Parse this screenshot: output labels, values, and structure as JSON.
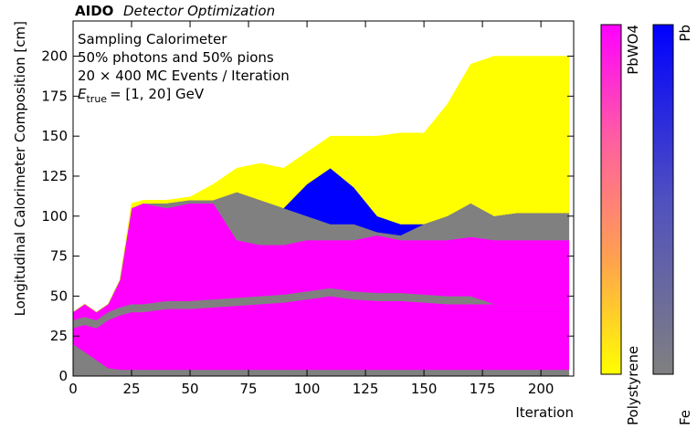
{
  "chart_data": {
    "type": "stacked_area",
    "header": {
      "bold": "AIDO",
      "italic": "Detector Optimization"
    },
    "xlabel": "Iteration",
    "ylabel": "Longitudinal Calorimeter Composition [cm]",
    "annotations": [
      "Sampling Calorimeter",
      "50% photons and 50% pions",
      "20 × 400 MC Events / Iteration"
    ],
    "energy_label": {
      "symbol": "E",
      "subscript": "true",
      "text": "= [1, 20] GeV"
    },
    "x": [
      0,
      5,
      10,
      15,
      20,
      25,
      30,
      40,
      50,
      60,
      70,
      80,
      90,
      100,
      110,
      120,
      130,
      140,
      150,
      160,
      170,
      180,
      190,
      200,
      212
    ],
    "series": [
      {
        "color": "#808080",
        "values": [
          20,
          15,
          10,
          5,
          4,
          4,
          4,
          4,
          4,
          4,
          4,
          4,
          4,
          4,
          4,
          4,
          4,
          4,
          4,
          4,
          4,
          4,
          4,
          4,
          4
        ]
      },
      {
        "color": "#ff00ff",
        "values": [
          10,
          17,
          20,
          30,
          34,
          36,
          36,
          38,
          38,
          39,
          40,
          41,
          42,
          44,
          46,
          44,
          43,
          43,
          42,
          41,
          41,
          41,
          41,
          41,
          41
        ]
      },
      {
        "color": "#808080",
        "values": [
          5,
          5,
          5,
          5,
          5,
          5,
          5,
          5,
          5,
          5,
          5,
          5,
          5,
          5,
          5,
          5,
          5,
          5,
          5,
          5,
          5,
          0,
          0,
          0,
          0
        ]
      },
      {
        "color": "#ff00ff",
        "values": [
          5,
          8,
          5,
          5,
          17,
          60,
          63,
          58,
          61,
          60,
          36,
          32,
          31,
          32,
          30,
          32,
          36,
          33,
          34,
          35,
          37,
          40,
          40,
          40,
          40
        ]
      },
      {
        "color": "#808080",
        "values": [
          0,
          0,
          0,
          0,
          0,
          0,
          0,
          3,
          2,
          2,
          30,
          28,
          23,
          15,
          10,
          10,
          2,
          3,
          10,
          15,
          21,
          15,
          17,
          17,
          17
        ]
      },
      {
        "color": "#0000ff",
        "values": [
          0,
          0,
          0,
          0,
          0,
          0,
          0,
          0,
          0,
          0,
          0,
          0,
          0,
          20,
          35,
          23,
          10,
          7,
          0,
          0,
          0,
          0,
          0,
          0,
          0
        ]
      },
      {
        "color": "#ffff00",
        "values": [
          0,
          0,
          0,
          0,
          0,
          3,
          2,
          2,
          2,
          10,
          15,
          23,
          25,
          20,
          20,
          32,
          50,
          57,
          57,
          70,
          87,
          100,
          98,
          98,
          98
        ]
      }
    ],
    "xlim": [
      0,
      214
    ],
    "ylim": [
      0,
      222
    ],
    "xticks": [
      0,
      25,
      50,
      75,
      100,
      125,
      150,
      175,
      200
    ],
    "yticks": [
      0,
      25,
      50,
      75,
      100,
      125,
      150,
      175,
      200
    ],
    "colorbars": [
      {
        "top_label": "PbWO4",
        "bottom_label": "Polystyrene",
        "colors": [
          "#ffff00",
          "#ffa050",
          "#ff60a0",
          "#ff00ff"
        ]
      },
      {
        "top_label": "Pb",
        "bottom_label": "Fe",
        "colors": [
          "#808080",
          "#5050c0",
          "#0000ff"
        ]
      }
    ]
  }
}
